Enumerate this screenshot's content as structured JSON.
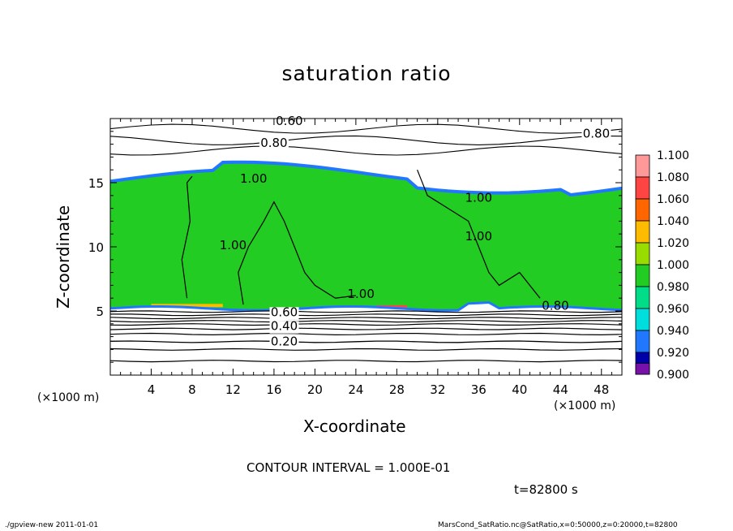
{
  "chart_data": {
    "type": "heatmap",
    "title": "saturation ratio",
    "xlabel": "X-coordinate",
    "ylabel": "Z-coordinate",
    "x_unit": "(×1000 m)",
    "xlim": [
      0,
      50
    ],
    "ylim": [
      0,
      20
    ],
    "x_ticks": [
      4,
      8,
      12,
      16,
      20,
      24,
      28,
      32,
      36,
      40,
      44,
      48
    ],
    "y_ticks": [
      5,
      10,
      15
    ],
    "contour_interval_text": "CONTOUR INTERVAL = 1.000E-01",
    "time_text": "t=82800 s",
    "contour_labels": [
      {
        "text": "0.60",
        "x": 17.5,
        "z": 19.5
      },
      {
        "text": "0.80",
        "x": 16,
        "z": 17.8
      },
      {
        "text": "0.80",
        "x": 47.5,
        "z": 18.5
      },
      {
        "text": "1.00",
        "x": 14,
        "z": 15
      },
      {
        "text": "1.00",
        "x": 36,
        "z": 13.5
      },
      {
        "text": "1.00",
        "x": 36,
        "z": 10.5
      },
      {
        "text": "1.00",
        "x": 12,
        "z": 9.8
      },
      {
        "text": "1.00",
        "x": 24.5,
        "z": 6
      },
      {
        "text": "0.80",
        "x": 43.5,
        "z": 5.1
      },
      {
        "text": "0.60",
        "x": 17,
        "z": 4.6
      },
      {
        "text": "0.40",
        "x": 17,
        "z": 3.5
      },
      {
        "text": "0.20",
        "x": 17,
        "z": 2.3
      }
    ],
    "colorbar": {
      "levels": [
        "1.100",
        "1.080",
        "1.060",
        "1.040",
        "1.020",
        "1.000",
        "0.980",
        "0.960",
        "0.940",
        "0.920",
        "0.900"
      ],
      "colors": [
        "#ff9999",
        "#ff4444",
        "#ff6600",
        "#ffbb00",
        "#99dd00",
        "#22cc22",
        "#00dd88",
        "#00dddd",
        "#2277ff",
        "#0000aa",
        "#7711aa"
      ]
    },
    "regions": {
      "saturated_layer_z": [
        5.2,
        16.2
      ],
      "saturated_value": 1.0,
      "above_value": 0.7,
      "below_value": 0.3
    }
  },
  "footer": {
    "left": "./gpview-new  2011-01-01",
    "right": "MarsCond_SatRatio.nc@SatRatio,x=0:50000,z=0:20000,t=82800"
  }
}
